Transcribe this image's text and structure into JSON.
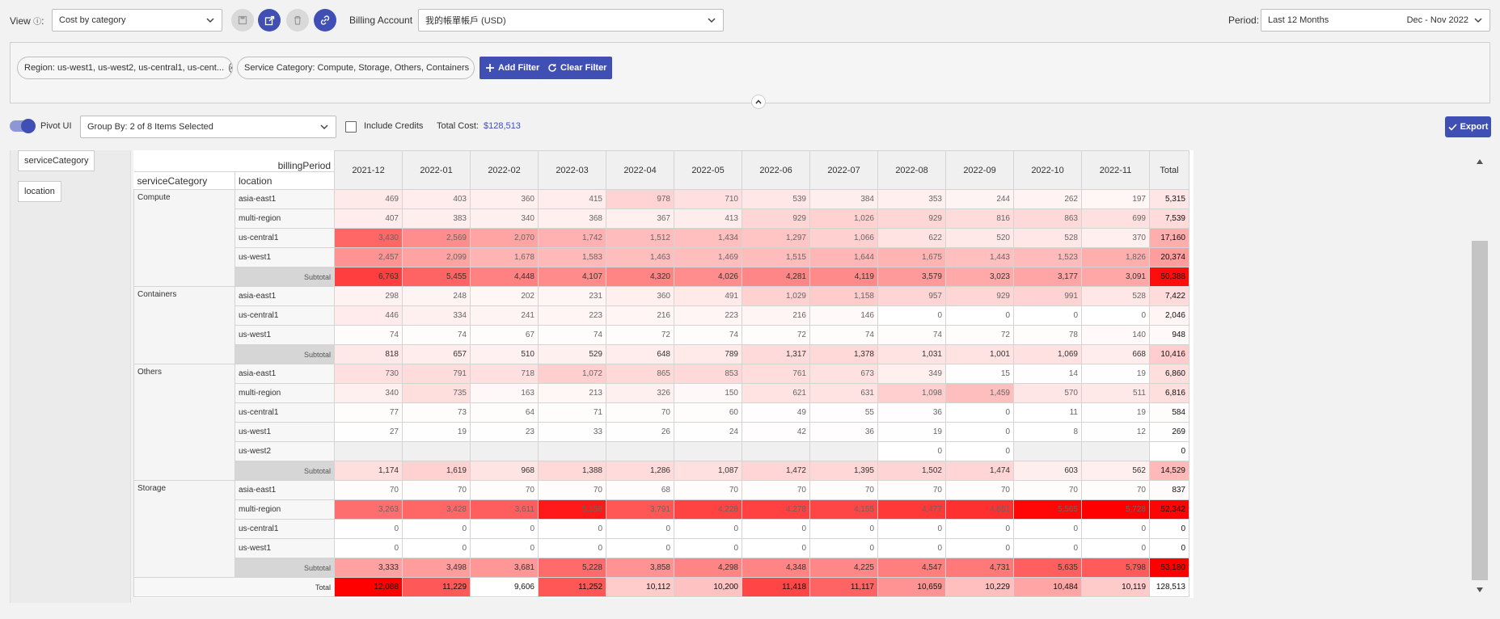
{
  "toolbar": {
    "view_label": "View",
    "view_value": "Cost by category",
    "billing_label": "Billing Account",
    "billing_value": "我的帳單帳戶 (USD)",
    "period_label": "Period:",
    "period_value": "Last 12 Months",
    "period_range": "Dec - Nov 2022"
  },
  "filters": {
    "chips": [
      {
        "text": "Region:  us-west1, us-west2, us-central1, us-cent..."
      },
      {
        "text": "Service Category:  Compute, Storage, Others, Containers"
      }
    ],
    "add_filter": "Add Filter",
    "clear_filter": "Clear Filter"
  },
  "options": {
    "pivot_label": "Pivot UI",
    "group_by": "Group By: 2 of 8 Items Selected",
    "include_credits": "Include Credits",
    "total_cost_label": "Total Cost:",
    "total_cost_value": "$128,513",
    "export": "Export"
  },
  "pivot": {
    "row_dims": [
      "serviceCategory",
      "location"
    ],
    "col_dim": "billingPeriod",
    "header_row": "serviceCategory",
    "header_loc": "location",
    "months": [
      "2021-12",
      "2022-01",
      "2022-02",
      "2022-03",
      "2022-04",
      "2022-05",
      "2022-06",
      "2022-07",
      "2022-08",
      "2022-09",
      "2022-10",
      "2022-11"
    ],
    "total_label": "Total",
    "subtotal_label": "Subtotal",
    "grand_label": "Total",
    "groups": [
      {
        "category": "Compute",
        "rows": [
          {
            "loc": "asia-east1",
            "vals": [
              "469",
              "403",
              "360",
              "415",
              "978",
              "710",
              "539",
              "384",
              "353",
              "244",
              "262",
              "197"
            ],
            "total": "5,315"
          },
          {
            "loc": "multi-region",
            "vals": [
              "407",
              "383",
              "340",
              "368",
              "367",
              "413",
              "929",
              "1,026",
              "929",
              "816",
              "863",
              "699"
            ],
            "total": "7,539"
          },
          {
            "loc": "us-central1",
            "vals": [
              "3,430",
              "2,569",
              "2,070",
              "1,742",
              "1,512",
              "1,434",
              "1,297",
              "1,066",
              "622",
              "520",
              "528",
              "370"
            ],
            "total": "17,160"
          },
          {
            "loc": "us-west1",
            "vals": [
              "2,457",
              "2,099",
              "1,678",
              "1,583",
              "1,463",
              "1,469",
              "1,515",
              "1,644",
              "1,675",
              "1,443",
              "1,523",
              "1,826"
            ],
            "total": "20,374"
          }
        ],
        "subtotal": {
          "vals": [
            "6,763",
            "5,455",
            "4,448",
            "4,107",
            "4,320",
            "4,026",
            "4,281",
            "4,119",
            "3,579",
            "3,023",
            "3,177",
            "3,091"
          ],
          "total": "50,388"
        }
      },
      {
        "category": "Containers",
        "rows": [
          {
            "loc": "asia-east1",
            "vals": [
              "298",
              "248",
              "202",
              "231",
              "360",
              "491",
              "1,029",
              "1,158",
              "957",
              "929",
              "991",
              "528"
            ],
            "total": "7,422"
          },
          {
            "loc": "us-central1",
            "vals": [
              "446",
              "334",
              "241",
              "223",
              "216",
              "223",
              "216",
              "146",
              "0",
              "0",
              "0",
              "0"
            ],
            "total": "2,046"
          },
          {
            "loc": "us-west1",
            "vals": [
              "74",
              "74",
              "67",
              "74",
              "72",
              "74",
              "72",
              "74",
              "74",
              "72",
              "78",
              "140"
            ],
            "total": "948"
          }
        ],
        "subtotal": {
          "vals": [
            "818",
            "657",
            "510",
            "529",
            "648",
            "789",
            "1,317",
            "1,378",
            "1,031",
            "1,001",
            "1,069",
            "668"
          ],
          "total": "10,416"
        }
      },
      {
        "category": "Others",
        "rows": [
          {
            "loc": "asia-east1",
            "vals": [
              "730",
              "791",
              "718",
              "1,072",
              "865",
              "853",
              "761",
              "673",
              "349",
              "15",
              "14",
              "19"
            ],
            "total": "6,860"
          },
          {
            "loc": "multi-region",
            "vals": [
              "340",
              "735",
              "163",
              "213",
              "326",
              "150",
              "621",
              "631",
              "1,098",
              "1,459",
              "570",
              "511"
            ],
            "total": "6,816"
          },
          {
            "loc": "us-central1",
            "vals": [
              "77",
              "73",
              "64",
              "71",
              "70",
              "60",
              "49",
              "55",
              "36",
              "0",
              "11",
              "19"
            ],
            "total": "584"
          },
          {
            "loc": "us-west1",
            "vals": [
              "27",
              "19",
              "23",
              "33",
              "26",
              "24",
              "42",
              "36",
              "19",
              "0",
              "8",
              "12"
            ],
            "total": "269"
          },
          {
            "loc": "us-west2",
            "vals": [
              "",
              "",
              "",
              "",
              "",
              "",
              "",
              "",
              "0",
              "0",
              "",
              ""
            ],
            "total": "0"
          }
        ],
        "subtotal": {
          "vals": [
            "1,174",
            "1,619",
            "968",
            "1,388",
            "1,286",
            "1,087",
            "1,472",
            "1,395",
            "1,502",
            "1,474",
            "603",
            "562"
          ],
          "total": "14,529"
        }
      },
      {
        "category": "Storage",
        "rows": [
          {
            "loc": "asia-east1",
            "vals": [
              "70",
              "70",
              "70",
              "70",
              "68",
              "70",
              "70",
              "70",
              "70",
              "70",
              "70",
              "70"
            ],
            "total": "837"
          },
          {
            "loc": "multi-region",
            "vals": [
              "3,263",
              "3,428",
              "3,611",
              "5,158",
              "3,791",
              "4,228",
              "4,278",
              "4,155",
              "4,477",
              "4,661",
              "5,565",
              "5,728"
            ],
            "total": "52,342"
          },
          {
            "loc": "us-central1",
            "vals": [
              "0",
              "0",
              "0",
              "0",
              "0",
              "0",
              "0",
              "0",
              "0",
              "0",
              "0",
              "0"
            ],
            "total": "0"
          },
          {
            "loc": "us-west1",
            "vals": [
              "0",
              "0",
              "0",
              "0",
              "0",
              "0",
              "0",
              "0",
              "0",
              "0",
              "0",
              "0"
            ],
            "total": "0"
          }
        ],
        "subtotal": {
          "vals": [
            "3,333",
            "3,498",
            "3,681",
            "5,228",
            "3,858",
            "4,298",
            "4,348",
            "4,225",
            "4,547",
            "4,731",
            "5,635",
            "5,798"
          ],
          "total": "53,180"
        }
      }
    ],
    "grand": {
      "vals": [
        "12,088",
        "11,229",
        "9,606",
        "11,252",
        "10,112",
        "10,200",
        "11,418",
        "11,117",
        "10,659",
        "10,229",
        "10,484",
        "10,119"
      ],
      "total": "128,513"
    }
  },
  "colors": {
    "accent": "#3f4fb4",
    "heat_max": "#ff0000"
  }
}
